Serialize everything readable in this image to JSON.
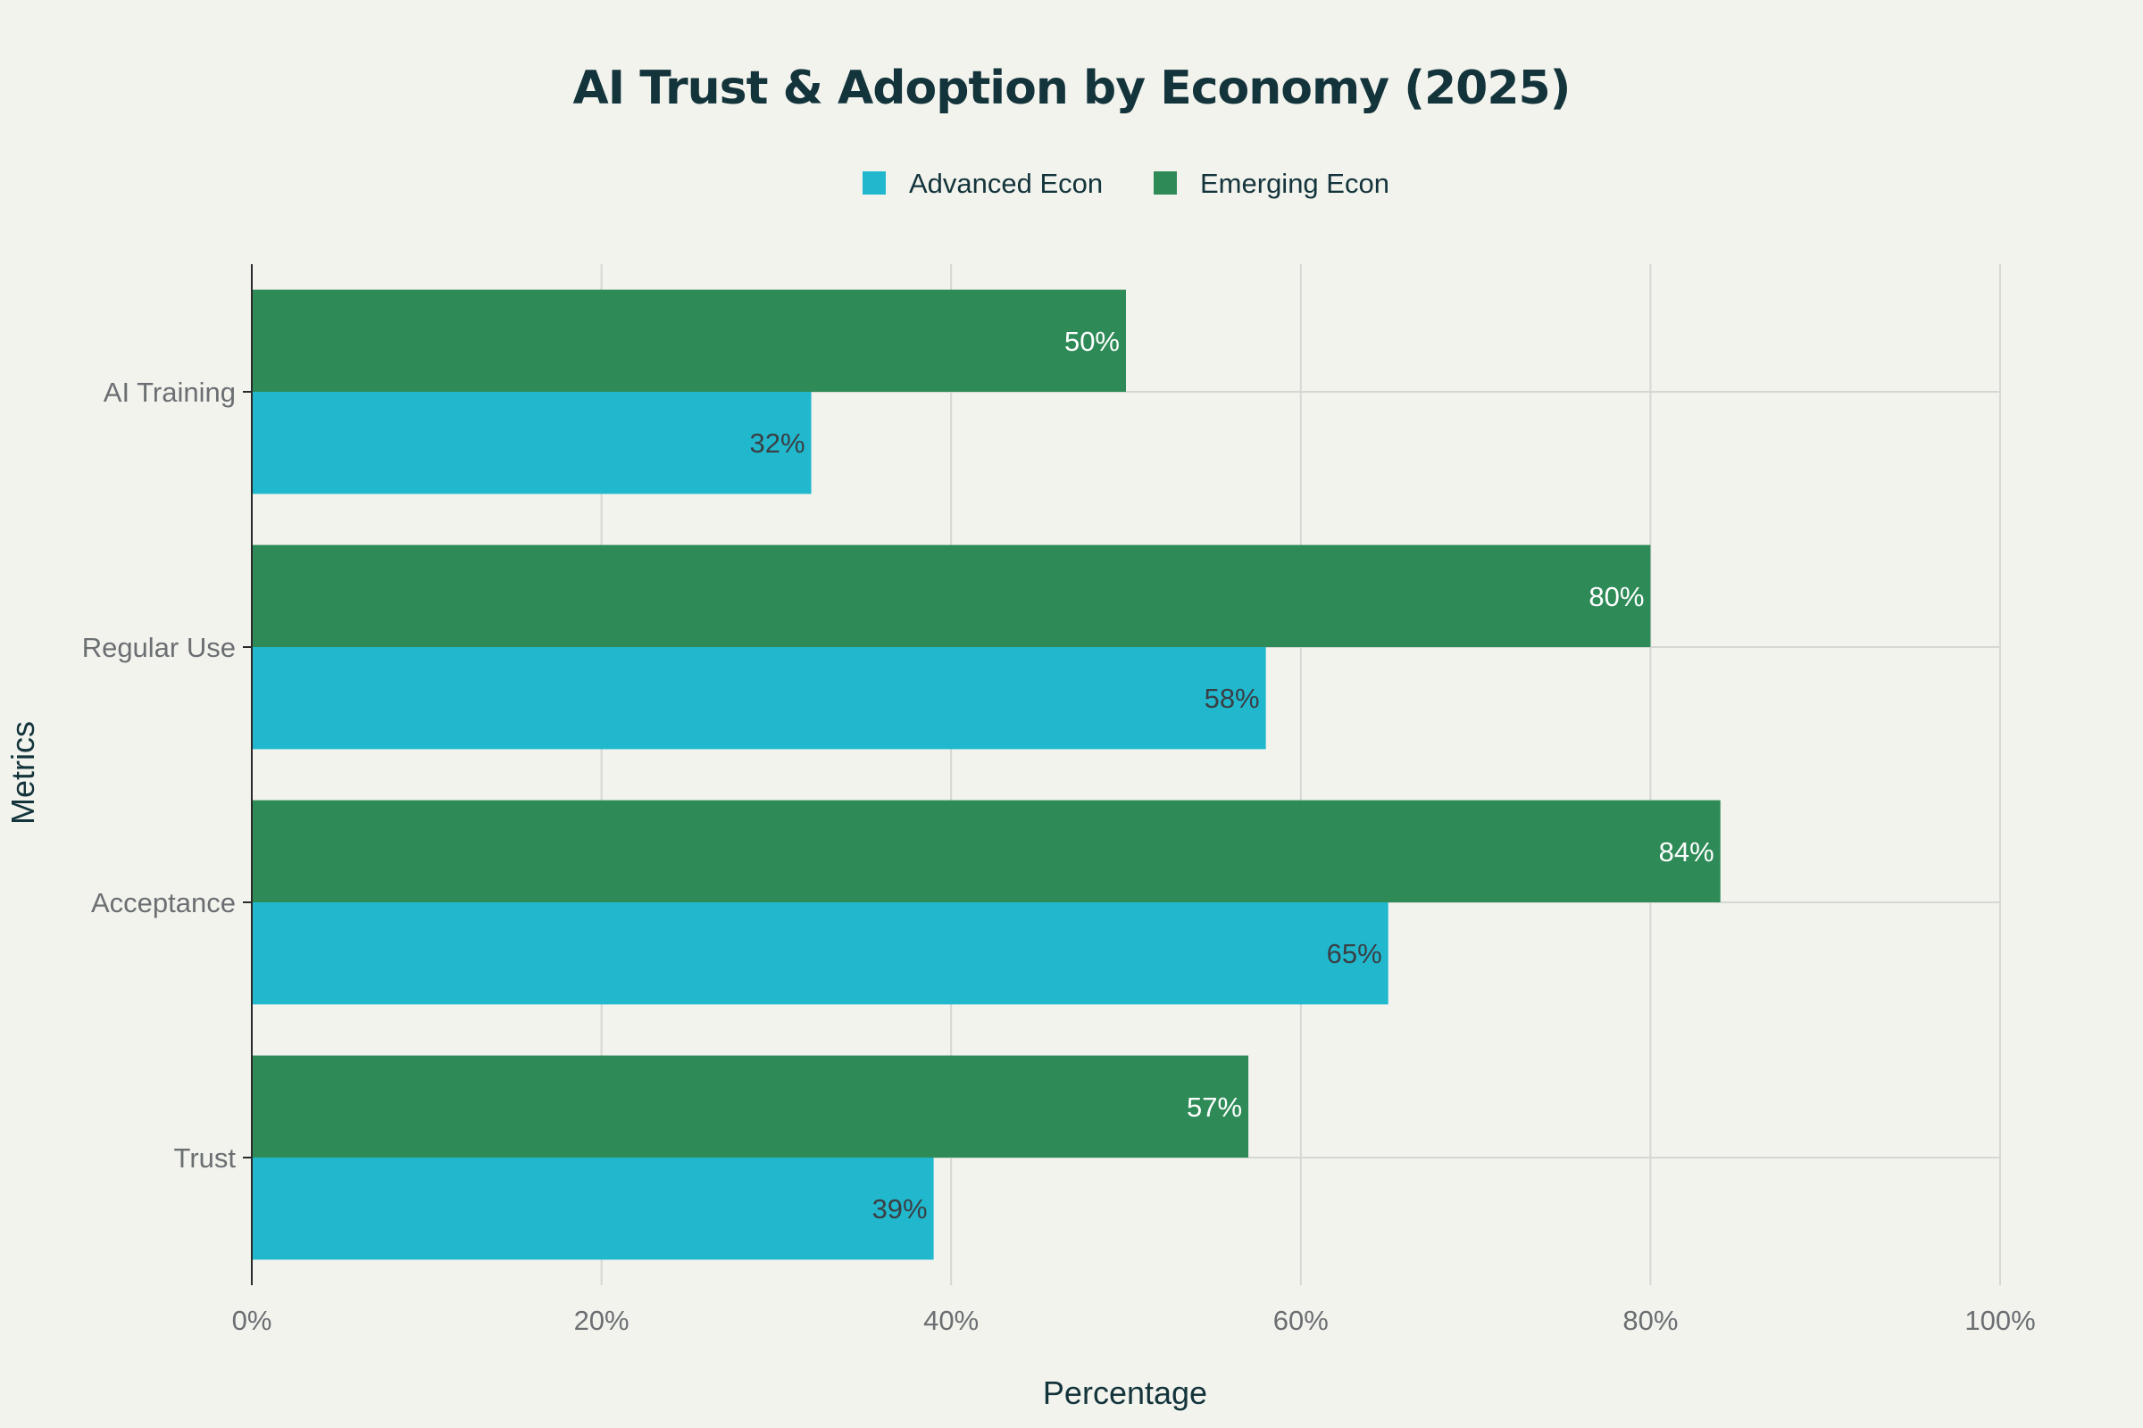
{
  "chart_data": {
    "type": "bar",
    "orientation": "horizontal",
    "title": "AI Trust & Adoption by Economy (2025)",
    "xlabel": "Percentage",
    "ylabel": "Metrics",
    "categories": [
      "AI Training",
      "Regular Use",
      "Acceptance",
      "Trust"
    ],
    "series": [
      {
        "name": "Advanced Econ",
        "color": "#21b8ce",
        "label_color": "#3a3f44",
        "values": [
          32,
          58,
          65,
          39
        ]
      },
      {
        "name": "Emerging Econ",
        "color": "#2e8b57",
        "label_color": "#ffffff",
        "values": [
          50,
          80,
          84,
          57
        ]
      }
    ],
    "xlim": [
      0,
      100
    ],
    "x_ticks": [
      0,
      20,
      40,
      60,
      80,
      100
    ],
    "x_tick_labels": [
      "0%",
      "20%",
      "40%",
      "60%",
      "80%",
      "100%"
    ],
    "value_suffix": "%",
    "grid": true,
    "legend_position": "top-center"
  }
}
